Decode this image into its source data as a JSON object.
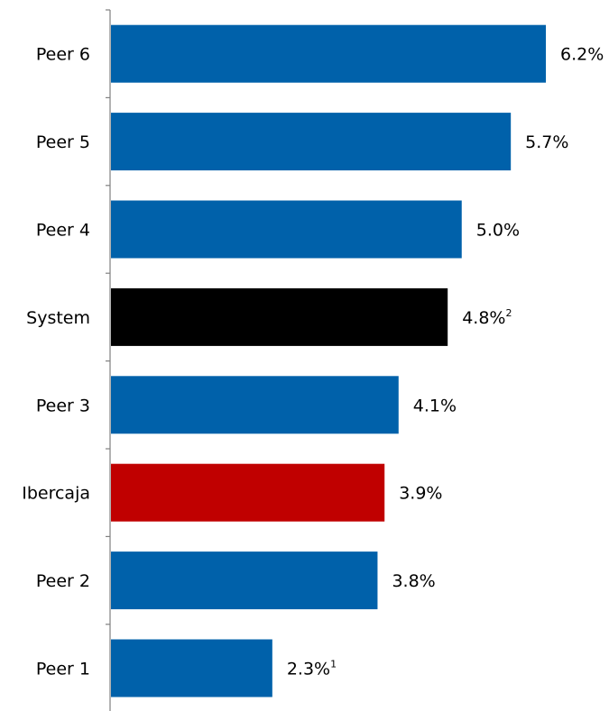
{
  "chart_data": {
    "type": "bar",
    "orientation": "horizontal",
    "categories": [
      "Peer 6",
      "Peer 5",
      "Peer 4",
      "System",
      "Peer 3",
      "Ibercaja",
      "Peer 2",
      "Peer 1"
    ],
    "values": [
      6.2,
      5.7,
      5.0,
      4.8,
      4.1,
      3.9,
      3.8,
      2.3
    ],
    "value_labels": [
      "6.2%",
      "5.7%",
      "5.0%",
      "4.8%",
      "4.1%",
      "3.9%",
      "3.8%",
      "2.3%"
    ],
    "footnote_marks": [
      "",
      "",
      "",
      "2",
      "",
      "",
      "",
      "1"
    ],
    "bar_colors": [
      "#0061AA",
      "#0061AA",
      "#0061AA",
      "#000000",
      "#0061AA",
      "#C00000",
      "#0061AA",
      "#0061AA"
    ],
    "xlim": [
      0,
      7.0
    ],
    "grid": false,
    "legend": "none",
    "title": "",
    "xlabel": "",
    "ylabel": ""
  }
}
